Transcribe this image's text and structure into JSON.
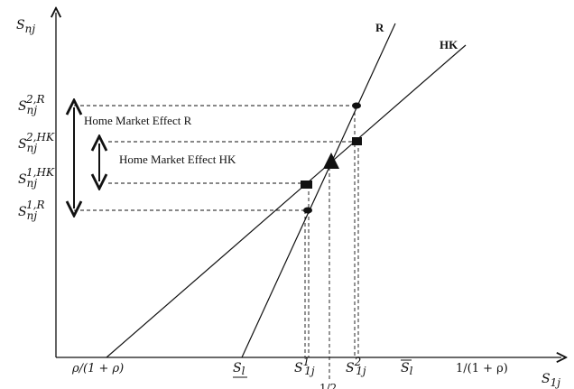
{
  "axes": {
    "y_label": "S",
    "y_sub": "nj",
    "x_label": "S",
    "x_sub": "1j"
  },
  "lines": {
    "steep": "R",
    "flat": "HK"
  },
  "x_ticks": {
    "rho": "ρ/(1 + ρ)",
    "s_low": "S",
    "s_low_sub": "l",
    "s1_base": "S",
    "s1_sup": "1",
    "s1_sub": "1j",
    "half": "1/2",
    "s2_base": "S",
    "s2_sup": "2",
    "s2_sub": "1j",
    "s_high": "S",
    "s_high_sub": "l",
    "inv": "1/(1 + ρ)"
  },
  "y_ticks": {
    "top_base": "S",
    "top_sub": "nj",
    "top_sup": "2,R",
    "hk2_base": "S",
    "hk2_sub": "nj",
    "hk2_sup": "2,HK",
    "hk1_base": "S",
    "hk1_sub": "nj",
    "hk1_sup": "1,HK",
    "bot_base": "S",
    "bot_sub": "nj",
    "bot_sup": "1,R"
  },
  "effects": {
    "r": "Home Market Effect R",
    "hk": "Home Market Effect HK"
  }
}
